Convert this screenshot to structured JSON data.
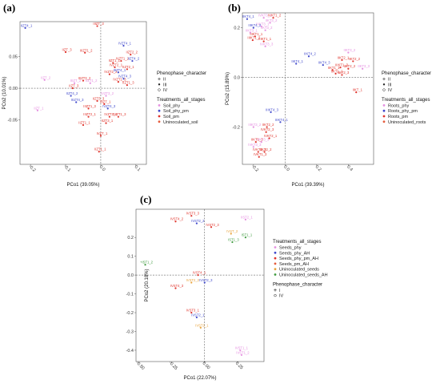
{
  "chart_data": [
    {
      "panel": "(a)",
      "type": "scatter",
      "xlabel": "PCo1 (39.05%)",
      "ylabel": "PCo2 (10.01%)",
      "xlim": [
        -0.23,
        0.13
      ],
      "ylim": [
        -0.12,
        0.105
      ],
      "xticks": [
        "-0.2",
        "-0.1",
        "0.0",
        "0.1"
      ],
      "xtick_values": [
        -0.2,
        -0.1,
        0.0,
        0.1
      ],
      "yticks": [
        "0.05",
        "0.00",
        "-0.05"
      ],
      "ytick_values": [
        0.05,
        0.0,
        -0.05
      ],
      "grid": false,
      "ref_lines": {
        "x": 0,
        "y": 0
      },
      "legend_position": "right",
      "legend": [
        {
          "title": "Phenophase_character",
          "items": [
            {
              "label": "II",
              "marker": "plus"
            },
            {
              "label": "III",
              "marker": "dot"
            },
            {
              "label": "IV",
              "marker": "circle"
            }
          ]
        },
        {
          "title": "Treatments_all_stages",
          "items": [
            {
              "label": "Soil_phy",
              "color": "#e58fe0"
            },
            {
              "label": "Soil_phy_pm",
              "color": "#3f48cc"
            },
            {
              "label": "Soil_pm",
              "color": "#e0332b"
            },
            {
              "label": "Uninoculated_soil",
              "color": "#e55b3c"
            }
          ]
        }
      ],
      "points": [
        {
          "label": "IIZT4_1",
          "x": -0.215,
          "y": 0.095,
          "color": "#3f48cc"
        },
        {
          "label": "IIIZT_3",
          "x": -0.01,
          "y": 0.098,
          "color": "#e0332b"
        },
        {
          "label": "IIZT_3",
          "x": -0.1,
          "y": 0.057,
          "color": "#e0332b"
        },
        {
          "label": "IIIZT1_2",
          "x": -0.045,
          "y": 0.056,
          "color": "#e0332b"
        },
        {
          "label": "IVZT4_1",
          "x": 0.065,
          "y": 0.067,
          "color": "#3f48cc"
        },
        {
          "label": "IIZT2_2",
          "x": 0.085,
          "y": 0.053,
          "color": "#e0332b"
        },
        {
          "label": "IVZT1_2",
          "x": 0.058,
          "y": 0.043,
          "color": "#e0332b"
        },
        {
          "label": "IIZT4_2",
          "x": 0.09,
          "y": 0.043,
          "color": "#3f48cc"
        },
        {
          "label": "IIZT1_1",
          "x": 0.035,
          "y": 0.04,
          "color": "#e0332b"
        },
        {
          "label": "IVZT2_1",
          "x": 0.04,
          "y": 0.033,
          "color": "#e0332b"
        },
        {
          "label": "IIZT2_1",
          "x": 0.075,
          "y": 0.03,
          "color": "#e0332b"
        },
        {
          "label": "IVZT2_2",
          "x": 0.025,
          "y": 0.022,
          "color": "#e0332b"
        },
        {
          "label": "IIIZT4_1",
          "x": 0.05,
          "y": 0.025,
          "color": "#3f48cc"
        },
        {
          "label": "IVZT4_3",
          "x": 0.065,
          "y": 0.015,
          "color": "#3f48cc"
        },
        {
          "label": "IIZT1_3",
          "x": 0.075,
          "y": 0.005,
          "color": "#e0332b"
        },
        {
          "label": "IIIZT_2",
          "x": -0.075,
          "y": 0.008,
          "color": "#e58fe0"
        },
        {
          "label": "IIZT1_2",
          "x": -0.03,
          "y": 0.008,
          "color": "#e58fe0"
        },
        {
          "label": "IIZT_2",
          "x": -0.16,
          "y": 0.013,
          "color": "#e58fe0"
        },
        {
          "label": "IIIZT3_2",
          "x": -0.05,
          "y": 0.012,
          "color": "#e0332b"
        },
        {
          "label": "IVZT1_3",
          "x": 0.05,
          "y": 0.01,
          "color": "#e0332b"
        },
        {
          "label": "IIZT_3",
          "x": -0.08,
          "y": 0.0,
          "color": "#e0332b"
        },
        {
          "label": "IIZT4_2",
          "x": -0.085,
          "y": -0.012,
          "color": "#3f48cc"
        },
        {
          "label": "IVZT3_2",
          "x": 0.015,
          "y": -0.012,
          "color": "#e58fe0"
        },
        {
          "label": "IIIZT4_3",
          "x": -0.07,
          "y": -0.022,
          "color": "#3f48cc"
        },
        {
          "label": "IIZT3_3",
          "x": -0.01,
          "y": -0.02,
          "color": "#e0332b"
        },
        {
          "label": "IIIZT1_3",
          "x": -0.035,
          "y": -0.032,
          "color": "#e0332b"
        },
        {
          "label": "IVZT4_3",
          "x": 0.02,
          "y": -0.032,
          "color": "#3f48cc"
        },
        {
          "label": "IIIZT_1",
          "x": 0.01,
          "y": -0.025,
          "color": "#e0332b"
        },
        {
          "label": "IIZT_1",
          "x": -0.18,
          "y": -0.035,
          "color": "#e58fe0"
        },
        {
          "label": "IIIZT2_1",
          "x": -0.035,
          "y": -0.045,
          "color": "#e0332b"
        },
        {
          "label": "IVZT3_1",
          "x": 0.025,
          "y": -0.045,
          "color": "#e0332b"
        },
        {
          "label": "IVZT1_3",
          "x": 0.05,
          "y": -0.045,
          "color": "#e0332b"
        },
        {
          "label": "IIZT1_1",
          "x": -0.05,
          "y": -0.058,
          "color": "#e0332b"
        },
        {
          "label": "IIZT3_1",
          "x": 0.015,
          "y": -0.055,
          "color": "#e0332b"
        },
        {
          "label": "IVZT_1",
          "x": 0.0,
          "y": -0.075,
          "color": "#e0332b"
        },
        {
          "label": "IIZT1_1",
          "x": -0.005,
          "y": -0.1,
          "color": "#e0332b"
        }
      ]
    },
    {
      "panel": "(b)",
      "type": "scatter",
      "xlabel": "PCo1 (39.39%)",
      "ylabel": "PCo2 (15.89%)",
      "xlim": [
        -0.27,
        0.56
      ],
      "ylim": [
        -0.35,
        0.26
      ],
      "xticks": [
        "-0.2",
        "0.0",
        "0.2",
        "0.4"
      ],
      "xtick_values": [
        -0.2,
        0.0,
        0.2,
        0.4
      ],
      "yticks": [
        "0.2",
        "0.0",
        "-0.2"
      ],
      "ytick_values": [
        0.2,
        0.0,
        -0.2
      ],
      "grid": false,
      "ref_lines": {
        "x": 0,
        "y": 0
      },
      "legend_position": "right",
      "legend": [
        {
          "title": "Phenophase_character",
          "items": [
            {
              "label": "II",
              "marker": "plus"
            },
            {
              "label": "III",
              "marker": "dot"
            },
            {
              "label": "IV",
              "marker": "circle"
            }
          ]
        },
        {
          "title": "Treatments_all_stages",
          "items": [
            {
              "label": "Roots_phy",
              "color": "#e58fe0"
            },
            {
              "label": "Roots_phy_pm",
              "color": "#3f48cc"
            },
            {
              "label": "Roots_pm",
              "color": "#e0332b"
            },
            {
              "label": "Uninoculated_roots",
              "color": "#e55b3c"
            }
          ]
        }
      ],
      "points": [
        {
          "label": "IIKT4_1",
          "x": -0.24,
          "y": 0.235,
          "color": "#3f48cc"
        },
        {
          "label": "IVKT3_1",
          "x": -0.135,
          "y": 0.24,
          "color": "#e58fe0"
        },
        {
          "label": "IVKT1_2",
          "x": -0.075,
          "y": 0.24,
          "color": "#e0332b"
        },
        {
          "label": "IIKT3_2",
          "x": -0.095,
          "y": 0.22,
          "color": "#e58fe0"
        },
        {
          "label": "IVKT3_1",
          "x": -0.15,
          "y": 0.205,
          "color": "#e58fe0"
        },
        {
          "label": "IIIKT4_2",
          "x": -0.2,
          "y": 0.2,
          "color": "#3f48cc"
        },
        {
          "label": "IIKT3_2",
          "x": -0.125,
          "y": 0.19,
          "color": "#e58fe0"
        },
        {
          "label": "IIKT3_1",
          "x": -0.22,
          "y": 0.18,
          "color": "#e58fe0"
        },
        {
          "label": "IIIKT1_1",
          "x": -0.19,
          "y": 0.165,
          "color": "#e0332b"
        },
        {
          "label": "IIIKT1_2",
          "x": -0.205,
          "y": 0.15,
          "color": "#e0332b"
        },
        {
          "label": "IIIKT1_1",
          "x": -0.135,
          "y": 0.145,
          "color": "#e0332b"
        },
        {
          "label": "IVKT3_3",
          "x": -0.125,
          "y": 0.125,
          "color": "#e58fe0"
        },
        {
          "label": "IIKT3_2",
          "x": 0.4,
          "y": 0.1,
          "color": "#e58fe0"
        },
        {
          "label": "IIKT4_2",
          "x": 0.15,
          "y": 0.085,
          "color": "#3f48cc"
        },
        {
          "label": "IIKT2_1",
          "x": 0.36,
          "y": 0.07,
          "color": "#e0332b"
        },
        {
          "label": "IIKT2_2",
          "x": 0.43,
          "y": 0.065,
          "color": "#e0332b"
        },
        {
          "label": "IIKT4_1",
          "x": 0.07,
          "y": 0.055,
          "color": "#3f48cc"
        },
        {
          "label": "IIKT4_3",
          "x": 0.24,
          "y": 0.05,
          "color": "#3f48cc"
        },
        {
          "label": "IIIKT1_3",
          "x": 0.35,
          "y": 0.04,
          "color": "#e0332b"
        },
        {
          "label": "IIKT2_2",
          "x": 0.4,
          "y": 0.035,
          "color": "#e0332b"
        },
        {
          "label": "IIKT3_3",
          "x": 0.49,
          "y": 0.035,
          "color": "#e58fe0"
        },
        {
          "label": "IIKT1_1",
          "x": 0.3,
          "y": 0.03,
          "color": "#e0332b"
        },
        {
          "label": "IIKT1_2",
          "x": 0.32,
          "y": 0.015,
          "color": "#e0332b"
        },
        {
          "label": "IIKT2_3",
          "x": 0.36,
          "y": 0.01,
          "color": "#e0332b"
        },
        {
          "label": "IIKT_1",
          "x": 0.45,
          "y": -0.06,
          "color": "#e0332b"
        },
        {
          "label": "IIIKT4_3",
          "x": -0.09,
          "y": -0.14,
          "color": "#3f48cc"
        },
        {
          "label": "IIIKT4_1",
          "x": -0.03,
          "y": -0.18,
          "color": "#3f48cc"
        },
        {
          "label": "IIKT2_2",
          "x": -0.115,
          "y": -0.2,
          "color": "#e0332b"
        },
        {
          "label": "IIIKT3_2",
          "x": -0.2,
          "y": -0.2,
          "color": "#e58fe0"
        },
        {
          "label": "IVKT2_3",
          "x": -0.12,
          "y": -0.22,
          "color": "#e0332b"
        },
        {
          "label": "IVKT3_3",
          "x": -0.15,
          "y": -0.26,
          "color": "#e58fe0"
        },
        {
          "label": "IVKT2_1",
          "x": -0.1,
          "y": -0.245,
          "color": "#e0332b"
        },
        {
          "label": "IIKT1_3",
          "x": -0.185,
          "y": -0.26,
          "color": "#e0332b"
        },
        {
          "label": "IVKT3_3",
          "x": -0.2,
          "y": -0.28,
          "color": "#e58fe0"
        },
        {
          "label": "IVKT2_3",
          "x": -0.17,
          "y": -0.3,
          "color": "#e0332b"
        },
        {
          "label": "IIKT2_2",
          "x": -0.13,
          "y": -0.3,
          "color": "#e0332b"
        },
        {
          "label": "IVKT1_3",
          "x": -0.165,
          "y": -0.32,
          "color": "#e0332b"
        }
      ]
    },
    {
      "panel": "(c)",
      "type": "scatter",
      "xlabel": "PCo1 (22.07%)",
      "ylabel": "PCo2 (20.18%)",
      "xlim": [
        -0.52,
        0.45
      ],
      "ylim": [
        -0.46,
        0.35
      ],
      "xticks": [
        "-0.50",
        "-0.25",
        "0.00",
        "0.25"
      ],
      "xtick_values": [
        -0.5,
        -0.25,
        0.0,
        0.25
      ],
      "yticks": [
        "0.2",
        "0.1",
        "0.0",
        "-0.1",
        "-0.2",
        "-0.3",
        "-0.4"
      ],
      "ytick_values": [
        0.2,
        0.1,
        0.0,
        -0.1,
        -0.2,
        -0.3,
        -0.4
      ],
      "grid": false,
      "ref_lines": {
        "x": 0,
        "y": 0
      },
      "legend_position": "right",
      "legend": [
        {
          "title": "Treatments_all_stages",
          "items": [
            {
              "label": "Seeds_phy",
              "color": "#e58fe0"
            },
            {
              "label": "Seeds_phy_AH",
              "color": "#3f48cc"
            },
            {
              "label": "Seeds_phy_pm_AH",
              "color": "#e0332b"
            },
            {
              "label": "Seeds_pm_AH",
              "color": "#e55b3c"
            },
            {
              "label": "Uninoculated_seeds",
              "color": "#e8a33c"
            },
            {
              "label": "Uninoculated_seeds_AH",
              "color": "#3d9a3d"
            }
          ]
        },
        {
          "title": "Phenophase_character",
          "items": [
            {
              "label": "I",
              "marker": "plus"
            },
            {
              "label": "IV",
              "marker": "circle"
            }
          ]
        }
      ],
      "points": [
        {
          "label": "IVST3_3",
          "x": -0.1,
          "y": 0.315,
          "color": "#e0332b"
        },
        {
          "label": "IVST4_2",
          "x": -0.22,
          "y": 0.285,
          "color": "#e0332b"
        },
        {
          "label": "IVST2_2",
          "x": -0.06,
          "y": 0.275,
          "color": "#3f48cc"
        },
        {
          "label": "IIST2_1",
          "x": 0.31,
          "y": 0.295,
          "color": "#e58fe0"
        },
        {
          "label": "IVST2_3",
          "x": 0.05,
          "y": 0.255,
          "color": "#e0332b"
        },
        {
          "label": "IVST_2",
          "x": 0.2,
          "y": 0.22,
          "color": "#e8a33c"
        },
        {
          "label": "IST1_1",
          "x": 0.31,
          "y": 0.2,
          "color": "#3d9a3d"
        },
        {
          "label": "IST1_3",
          "x": 0.21,
          "y": 0.175,
          "color": "#3d9a3d"
        },
        {
          "label": "+IST1_2",
          "x": -0.45,
          "y": 0.055,
          "color": "#3d9a3d"
        },
        {
          "label": "IVST4_1",
          "x": -0.05,
          "y": 0.0,
          "color": "#e0332b"
        },
        {
          "label": "IVST2_2",
          "x": -0.1,
          "y": -0.04,
          "color": "#e8a33c"
        },
        {
          "label": "IVST2_3",
          "x": 0.0,
          "y": -0.04,
          "color": "#3f48cc"
        },
        {
          "label": "IVST4_3",
          "x": -0.22,
          "y": -0.07,
          "color": "#e0332b"
        },
        {
          "label": "IVST3_1",
          "x": -0.1,
          "y": -0.2,
          "color": "#e0332b"
        },
        {
          "label": "IVST2_1",
          "x": -0.06,
          "y": -0.225,
          "color": "#3f48cc"
        },
        {
          "label": "IVST2_1",
          "x": -0.03,
          "y": -0.28,
          "color": "#e8a33c"
        },
        {
          "label": "IVST1_1",
          "x": 0.27,
          "y": -0.4,
          "color": "#e58fe0"
        },
        {
          "label": "IVST1_2",
          "x": 0.28,
          "y": -0.425,
          "color": "#e58fe0"
        }
      ]
    }
  ]
}
